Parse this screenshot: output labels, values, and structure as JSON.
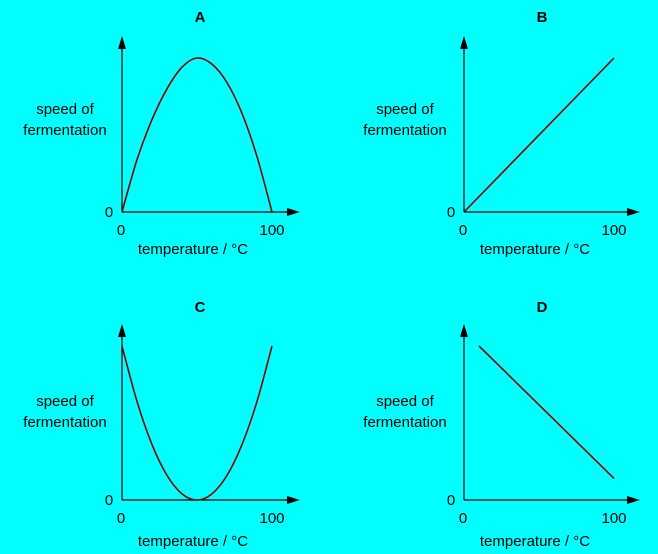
{
  "chart_data": [
    {
      "type": "line",
      "title": "A",
      "ylabel": [
        "speed of",
        "fermentation"
      ],
      "xlabel": "temperature / °C",
      "xlim": [
        0,
        100
      ],
      "ylim": [
        0,
        100
      ],
      "x_ticks": [
        "0",
        "100"
      ],
      "y_ticks": [
        "0"
      ],
      "series": [
        {
          "x": [
            0,
            10,
            20,
            30,
            40,
            50,
            60,
            70,
            80,
            90,
            100
          ],
          "y": [
            0,
            34,
            60,
            80,
            94,
            100,
            96,
            84,
            64,
            36,
            0
          ]
        }
      ],
      "grid": false
    },
    {
      "type": "line",
      "title": "B",
      "ylabel": [
        "speed of",
        "fermentation"
      ],
      "xlabel": "temperature / °C",
      "xlim": [
        0,
        100
      ],
      "ylim": [
        0,
        100
      ],
      "x_ticks": [
        "0",
        "100"
      ],
      "y_ticks": [
        "0"
      ],
      "series": [
        {
          "x": [
            0,
            100
          ],
          "y": [
            0,
            100
          ]
        }
      ],
      "grid": false
    },
    {
      "type": "line",
      "title": "C",
      "ylabel": [
        "speed of",
        "fermentation"
      ],
      "xlabel": "temperature / °C",
      "xlim": [
        0,
        100
      ],
      "ylim": [
        0,
        100
      ],
      "x_ticks": [
        "0",
        "100"
      ],
      "y_ticks": [
        "0"
      ],
      "series": [
        {
          "x": [
            0,
            10,
            20,
            30,
            40,
            50,
            60,
            70,
            80,
            90,
            100
          ],
          "y": [
            100,
            64,
            36,
            16,
            4,
            0,
            4,
            16,
            36,
            64,
            100
          ]
        }
      ],
      "grid": false
    },
    {
      "type": "line",
      "title": "D",
      "ylabel": [
        "speed of",
        "fermentation"
      ],
      "xlabel": "temperature / °C",
      "xlim": [
        0,
        100
      ],
      "ylim": [
        0,
        100
      ],
      "x_ticks": [
        "0",
        "100"
      ],
      "y_ticks": [
        "0"
      ],
      "series": [
        {
          "x": [
            10,
            100
          ],
          "y": [
            100,
            14
          ]
        }
      ],
      "grid": false
    }
  ],
  "colors": {
    "background": "#00ffff",
    "axis": "#000000",
    "curve": "#8b0000"
  }
}
